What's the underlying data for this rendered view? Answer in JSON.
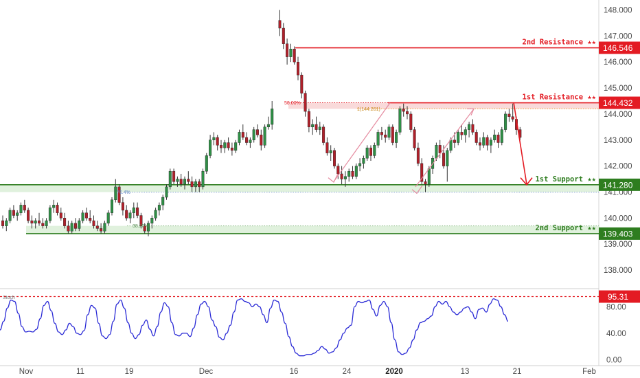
{
  "chart_data": [
    {
      "type": "candlestick",
      "instrument_note": "",
      "ylim": [
        137.3,
        148.2
      ],
      "y_ticks": [
        "148.000",
        "147.000",
        "146.000",
        "145.000",
        "144.000",
        "143.000",
        "142.000",
        "141.000",
        "140.000",
        "139.000",
        "138.000"
      ],
      "x_tick_labels": [
        "Nov",
        "11",
        "19",
        "Dec",
        "16",
        "24",
        "2020",
        "13",
        "21",
        "Feb"
      ],
      "levels": [
        {
          "name": "2nd Resistance ★★",
          "value": 146.546,
          "tag": "146.546",
          "color": "#e31b23"
        },
        {
          "name": "1st Resistance ★★",
          "value": 144.432,
          "tag": "144.432",
          "color": "#e31b23"
        },
        {
          "name": "1st Support ★★",
          "value": 141.28,
          "tag": "141.280",
          "color": "#2e7d1f"
        },
        {
          "name": "2nd Support ★★",
          "value": 139.403,
          "tag": "139.403",
          "color": "#2e7d1f"
        }
      ],
      "fib_labels": [
        "50.00%",
        "1(144.201)",
        "76.4%",
        "38.20%"
      ],
      "candles": [
        [
          139.9,
          140.1,
          139.6,
          139.7
        ],
        [
          139.7,
          140.0,
          139.5,
          139.9
        ],
        [
          139.9,
          140.4,
          139.8,
          140.3
        ],
        [
          140.3,
          140.5,
          140.0,
          140.1
        ],
        [
          140.1,
          140.3,
          139.9,
          140.2
        ],
        [
          140.2,
          140.6,
          140.1,
          140.5
        ],
        [
          140.5,
          140.7,
          140.2,
          140.3
        ],
        [
          140.3,
          140.4,
          139.8,
          139.9
        ],
        [
          139.9,
          140.1,
          139.6,
          139.8
        ],
        [
          139.8,
          140.0,
          139.6,
          139.9
        ],
        [
          139.9,
          140.2,
          139.7,
          139.8
        ],
        [
          139.8,
          140.0,
          139.6,
          139.7
        ],
        [
          139.7,
          140.0,
          139.6,
          139.9
        ],
        [
          139.9,
          140.5,
          139.8,
          140.4
        ],
        [
          140.4,
          140.7,
          140.2,
          140.5
        ],
        [
          140.5,
          140.6,
          140.1,
          140.2
        ],
        [
          140.2,
          140.4,
          139.9,
          140.0
        ],
        [
          140.0,
          140.2,
          139.6,
          139.7
        ],
        [
          139.7,
          139.9,
          139.4,
          139.5
        ],
        [
          139.5,
          139.9,
          139.4,
          139.8
        ],
        [
          139.8,
          140.0,
          139.5,
          139.6
        ],
        [
          139.6,
          140.0,
          139.5,
          139.9
        ],
        [
          139.9,
          140.3,
          139.8,
          140.2
        ],
        [
          140.2,
          140.4,
          139.9,
          140.0
        ],
        [
          140.0,
          140.3,
          139.8,
          139.9
        ],
        [
          139.9,
          140.1,
          139.6,
          139.7
        ],
        [
          139.7,
          139.9,
          139.5,
          139.6
        ],
        [
          139.6,
          139.8,
          139.4,
          139.5
        ],
        [
          139.5,
          139.9,
          139.4,
          139.8
        ],
        [
          139.8,
          140.3,
          139.7,
          140.2
        ],
        [
          140.2,
          140.8,
          140.1,
          140.7
        ],
        [
          140.7,
          141.5,
          140.6,
          141.2
        ],
        [
          141.2,
          141.3,
          140.5,
          140.6
        ],
        [
          140.6,
          140.8,
          140.1,
          140.3
        ],
        [
          140.3,
          140.5,
          139.9,
          140.0
        ],
        [
          140.0,
          140.3,
          139.8,
          140.2
        ],
        [
          140.2,
          140.6,
          140.0,
          140.4
        ],
        [
          140.4,
          140.6,
          140.0,
          140.1
        ],
        [
          140.1,
          140.2,
          139.6,
          139.7
        ],
        [
          139.7,
          139.8,
          139.4,
          139.5
        ],
        [
          139.5,
          139.9,
          139.3,
          139.8
        ],
        [
          139.8,
          140.1,
          139.6,
          140.0
        ],
        [
          140.0,
          140.4,
          139.9,
          140.3
        ],
        [
          140.3,
          140.6,
          140.1,
          140.5
        ],
        [
          140.5,
          140.9,
          140.3,
          140.8
        ],
        [
          140.8,
          141.3,
          140.7,
          141.2
        ],
        [
          141.2,
          141.9,
          141.1,
          141.8
        ],
        [
          141.8,
          141.9,
          141.3,
          141.4
        ],
        [
          141.4,
          141.6,
          141.2,
          141.5
        ],
        [
          141.5,
          141.7,
          141.2,
          141.3
        ],
        [
          141.3,
          141.6,
          141.1,
          141.5
        ],
        [
          141.5,
          141.8,
          141.3,
          141.4
        ],
        [
          141.4,
          141.6,
          141.0,
          141.2
        ],
        [
          141.2,
          141.5,
          141.0,
          141.4
        ],
        [
          141.4,
          141.5,
          141.0,
          141.2
        ],
        [
          141.2,
          141.9,
          141.1,
          141.8
        ],
        [
          141.8,
          142.5,
          141.7,
          142.4
        ],
        [
          142.4,
          143.2,
          142.3,
          143.0
        ],
        [
          143.0,
          143.3,
          142.8,
          143.1
        ],
        [
          143.1,
          143.2,
          142.6,
          142.8
        ],
        [
          142.8,
          143.0,
          142.5,
          142.7
        ],
        [
          142.7,
          143.0,
          142.5,
          142.9
        ],
        [
          142.9,
          143.1,
          142.6,
          142.7
        ],
        [
          142.7,
          142.9,
          142.4,
          142.6
        ],
        [
          142.6,
          143.0,
          142.5,
          142.9
        ],
        [
          142.9,
          143.4,
          142.8,
          143.3
        ],
        [
          143.3,
          143.6,
          143.0,
          143.1
        ],
        [
          143.1,
          143.3,
          142.8,
          142.9
        ],
        [
          142.9,
          143.1,
          142.7,
          143.0
        ],
        [
          143.0,
          143.5,
          142.9,
          143.4
        ],
        [
          143.4,
          143.6,
          143.1,
          143.2
        ],
        [
          143.2,
          143.4,
          142.6,
          142.8
        ],
        [
          142.8,
          143.6,
          142.7,
          143.5
        ],
        [
          143.5,
          143.9,
          143.4,
          143.6
        ],
        [
          143.6,
          144.5,
          143.4,
          144.2
        ],
        [
          147.6,
          148.0,
          147.0,
          147.3
        ],
        [
          147.3,
          147.5,
          146.5,
          146.7
        ],
        [
          146.7,
          146.9,
          145.9,
          146.2
        ],
        [
          146.2,
          146.7,
          146.0,
          146.5
        ],
        [
          146.5,
          146.6,
          145.9,
          146.0
        ],
        [
          146.0,
          146.2,
          145.3,
          145.5
        ],
        [
          145.5,
          145.6,
          144.6,
          144.8
        ],
        [
          144.8,
          144.9,
          143.9,
          144.1
        ],
        [
          144.1,
          144.2,
          143.3,
          143.5
        ],
        [
          143.5,
          143.8,
          143.2,
          143.6
        ],
        [
          143.6,
          143.9,
          143.3,
          143.4
        ],
        [
          143.4,
          143.7,
          143.2,
          143.5
        ],
        [
          143.5,
          143.6,
          142.8,
          142.9
        ],
        [
          142.9,
          143.1,
          142.4,
          142.5
        ],
        [
          142.5,
          142.8,
          142.2,
          142.6
        ],
        [
          142.6,
          142.7,
          141.9,
          142.0
        ],
        [
          142.0,
          142.1,
          141.5,
          141.7
        ],
        [
          141.7,
          142.0,
          141.3,
          141.5
        ],
        [
          141.5,
          141.8,
          141.2,
          141.6
        ],
        [
          141.6,
          141.9,
          141.4,
          141.8
        ],
        [
          141.8,
          142.0,
          141.5,
          141.6
        ],
        [
          141.6,
          142.1,
          141.5,
          142.0
        ],
        [
          142.0,
          142.3,
          141.8,
          142.1
        ],
        [
          142.1,
          142.4,
          141.9,
          142.3
        ],
        [
          142.3,
          142.8,
          142.2,
          142.7
        ],
        [
          142.7,
          142.8,
          142.2,
          142.4
        ],
        [
          142.4,
          142.9,
          142.3,
          142.8
        ],
        [
          142.8,
          143.4,
          142.7,
          143.3
        ],
        [
          143.3,
          143.5,
          143.0,
          143.2
        ],
        [
          143.2,
          143.4,
          142.9,
          143.1
        ],
        [
          143.1,
          143.6,
          143.0,
          143.5
        ],
        [
          143.5,
          143.6,
          142.8,
          142.9
        ],
        [
          142.9,
          143.4,
          142.7,
          143.3
        ],
        [
          143.3,
          144.3,
          143.2,
          144.2
        ],
        [
          144.2,
          144.4,
          143.9,
          144.1
        ],
        [
          144.1,
          144.3,
          143.8,
          144.0
        ],
        [
          144.0,
          144.1,
          143.3,
          143.4
        ],
        [
          143.4,
          143.5,
          142.6,
          142.7
        ],
        [
          142.7,
          142.9,
          142.0,
          142.1
        ],
        [
          142.1,
          142.3,
          141.3,
          141.4
        ],
        [
          141.4,
          141.5,
          141.0,
          141.3
        ],
        [
          141.3,
          142.0,
          141.2,
          141.9
        ],
        [
          141.9,
          142.4,
          141.7,
          142.3
        ],
        [
          142.3,
          142.9,
          142.2,
          142.8
        ],
        [
          142.8,
          143.0,
          142.3,
          142.5
        ],
        [
          142.5,
          142.8,
          141.9,
          142.0
        ],
        [
          142.0,
          142.7,
          141.4,
          142.6
        ],
        [
          142.6,
          143.1,
          142.5,
          143.0
        ],
        [
          143.0,
          143.3,
          142.7,
          142.9
        ],
        [
          142.9,
          143.4,
          142.8,
          143.3
        ],
        [
          143.3,
          143.6,
          143.0,
          143.2
        ],
        [
          143.2,
          143.5,
          142.9,
          143.4
        ],
        [
          143.4,
          143.7,
          143.1,
          143.6
        ],
        [
          143.6,
          143.8,
          143.2,
          143.3
        ],
        [
          143.3,
          143.4,
          142.8,
          142.9
        ],
        [
          142.9,
          143.1,
          142.6,
          142.8
        ],
        [
          142.8,
          143.3,
          142.7,
          143.1
        ],
        [
          143.1,
          143.2,
          142.6,
          142.8
        ],
        [
          142.8,
          143.1,
          142.5,
          143.0
        ],
        [
          143.0,
          143.4,
          142.9,
          143.2
        ],
        [
          143.2,
          143.3,
          142.7,
          142.9
        ],
        [
          142.9,
          143.5,
          142.8,
          143.4
        ],
        [
          143.4,
          144.1,
          143.3,
          144.0
        ],
        [
          144.0,
          144.2,
          143.7,
          143.9
        ],
        [
          143.9,
          144.4,
          143.7,
          143.8
        ],
        [
          143.8,
          143.9,
          143.2,
          143.4
        ],
        [
          143.4,
          143.5,
          143.0,
          143.1
        ]
      ]
    },
    {
      "type": "line",
      "indicator": "Stoch",
      "ylim": [
        0,
        100
      ],
      "y_ticks": [
        "80.00",
        "40.00",
        "0.00"
      ],
      "threshold": {
        "value": 95.31,
        "tag": "95.31",
        "color": "#e31b23"
      },
      "series": [
        {
          "name": "",
          "color": "#2b2bd6",
          "values": [
            45,
            58,
            78,
            90,
            88,
            70,
            50,
            42,
            43,
            42,
            46,
            62,
            82,
            88,
            74,
            55,
            42,
            38,
            45,
            55,
            50,
            40,
            38,
            44,
            68,
            82,
            78,
            55,
            36,
            32,
            38,
            58,
            84,
            90,
            78,
            56,
            40,
            32,
            38,
            52,
            60,
            46,
            36,
            50,
            72,
            86,
            80,
            56,
            38,
            36,
            40,
            40,
            35,
            48,
            68,
            84,
            88,
            80,
            60,
            50,
            34,
            30,
            40,
            52,
            72,
            90,
            92,
            88,
            86,
            80,
            84,
            80,
            68,
            56,
            78,
            90,
            88,
            72,
            55,
            35,
            20,
            10,
            6,
            6,
            8,
            8,
            10,
            14,
            20,
            16,
            10,
            12,
            18,
            30,
            40,
            48,
            52,
            80,
            88,
            86,
            88,
            90,
            76,
            66,
            82,
            88,
            80,
            56,
            30,
            12,
            8,
            10,
            18,
            30,
            45,
            56,
            58,
            62,
            66,
            80,
            88,
            84,
            88,
            80,
            72,
            68,
            72,
            78,
            80,
            72,
            62,
            76,
            78,
            72,
            84,
            92,
            90,
            80,
            68,
            58
          ]
        }
      ]
    }
  ]
}
